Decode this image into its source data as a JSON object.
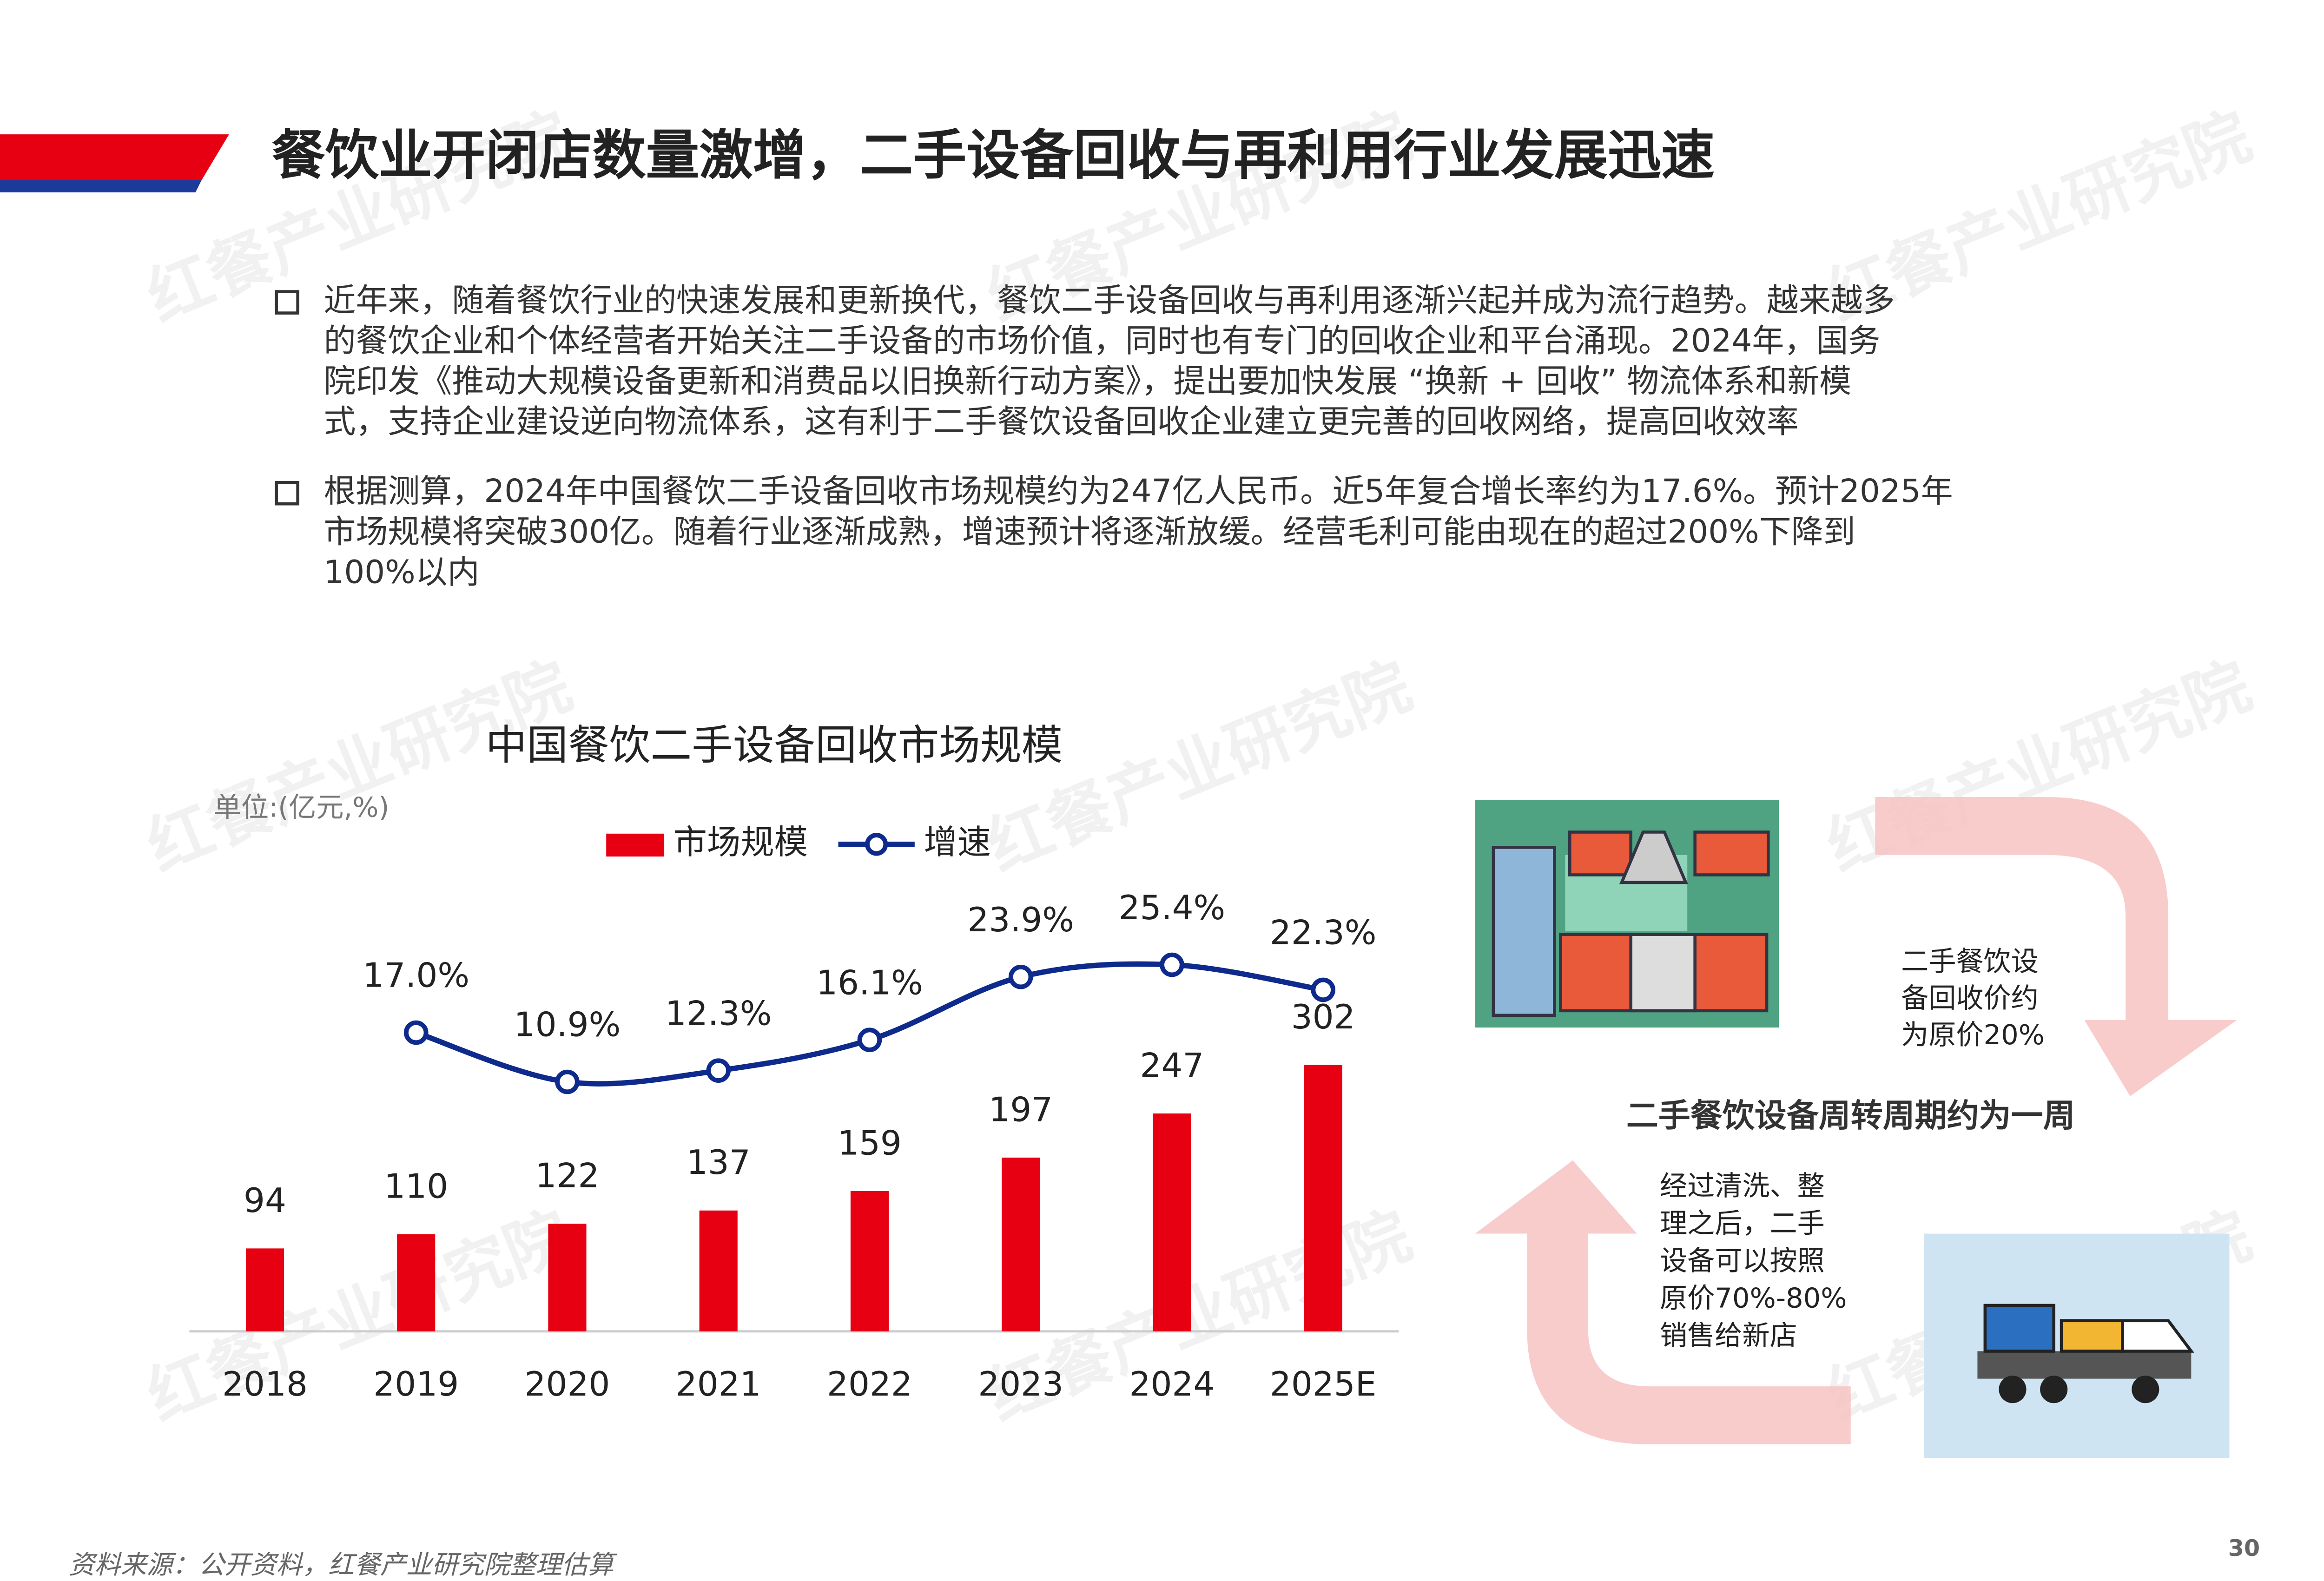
{
  "header": {
    "title": "餐饮业开闭店数量激增，二手设备回收与再利用行业发展迅速"
  },
  "bullets": [
    [
      "近年来，随着餐饮行业的快速发展和更新换代，餐饮二手设备回收与再利用逐渐兴起并成为流行趋势。越来越多",
      "的餐饮企业和个体经营者开始关注二手设备的市场价值，同时也有专门的回收企业和平台涌现。2024年，国务",
      "院印发《推动大规模设备更新和消费品以旧换新行动方案》，提出要加快发展 “换新 + 回收” 物流体系和新模",
      "式，支持企业建设逆向物流体系，这有利于二手餐饮设备回收企业建立更完善的回收网络，提高回收效率"
    ],
    [
      "根据测算，2024年中国餐饮二手设备回收市场规模约为247亿人民币。近5年复合增长率约为17.6%。预计2025年",
      "市场规模将突破300亿。随着行业逐渐成熟，增速预计将逐渐放缓。经营毛利可能由现在的超过200%下降到",
      "100%以内"
    ]
  ],
  "chart_data": {
    "type": "bar",
    "title": "中国餐饮二手设备回收市场规模",
    "subtitle": "单位:(亿元,%)",
    "categories": [
      "2018",
      "2019",
      "2020",
      "2021",
      "2022",
      "2023",
      "2024",
      "2025E"
    ],
    "series": [
      {
        "name": "市场规模",
        "type": "bar",
        "color": "#e60012",
        "values": [
          94,
          110,
          122,
          137,
          159,
          197,
          247,
          302
        ]
      },
      {
        "name": "增速",
        "type": "line",
        "axis": "y2",
        "color": "#0d2a8c",
        "values": [
          null,
          17.0,
          10.9,
          12.3,
          16.1,
          23.9,
          25.4,
          22.3
        ],
        "value_labels": [
          null,
          "17.0%",
          "10.9%",
          "12.3%",
          "16.1%",
          "23.9%",
          "25.4%",
          "22.3%"
        ]
      }
    ],
    "ylim": [
      0,
      540
    ],
    "y2lim": [
      -20,
      39
    ],
    "grid": false,
    "legend": "top"
  },
  "diagram": {
    "center": "二手餐饮设备周转周期约为一周",
    "top_note": [
      "二手餐饮设",
      "备回收价约",
      "为原价20%"
    ],
    "bottom_note": [
      "经过清洗、整",
      "理之后，二手",
      "设备可以按照",
      "原价70%-80%",
      "销售给新店"
    ]
  },
  "watermark": "红餐产业研究院",
  "source": "资料来源：公开资料，红餐产业研究院整理估算",
  "page_number": "30"
}
